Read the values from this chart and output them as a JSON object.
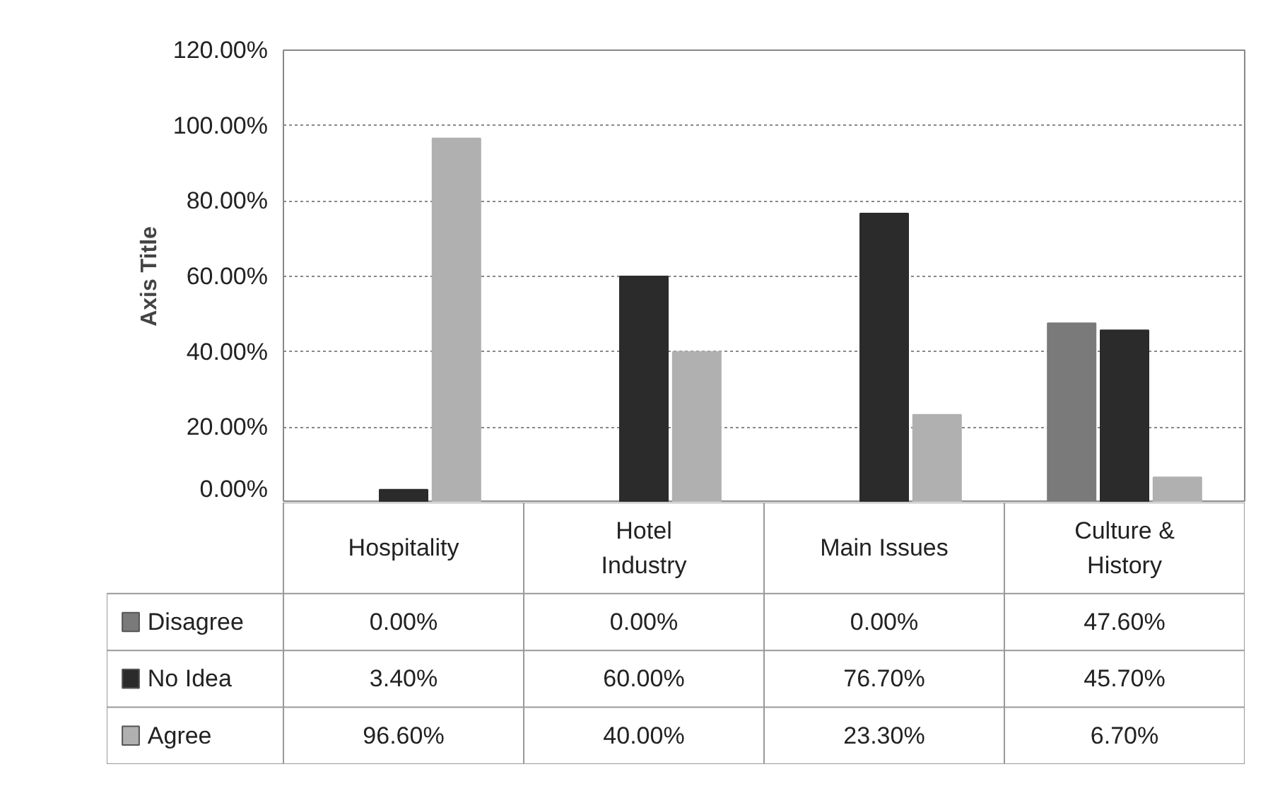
{
  "chart_data": {
    "type": "bar",
    "ylabel": "Axis Title",
    "categories": [
      "Hospitality",
      "Hotel Industry",
      "Main Issues",
      "Culture & History"
    ],
    "series": [
      {
        "name": "Disagree",
        "color": "#7a7a7a",
        "values": [
          0,
          0,
          0,
          47.6
        ],
        "value_labels": [
          "0.00%",
          "0.00%",
          "0.00%",
          "47.60%"
        ]
      },
      {
        "name": "No Idea",
        "color": "#2b2b2b",
        "values": [
          3.4,
          60,
          76.7,
          45.7
        ],
        "value_labels": [
          "3.40%",
          "60.00%",
          "76.70%",
          "45.70%"
        ]
      },
      {
        "name": "Agree",
        "color": "#b0b0b0",
        "values": [
          96.6,
          40,
          23.3,
          6.7
        ],
        "value_labels": [
          "96.60%",
          "40.00%",
          "23.30%",
          "6.70%"
        ]
      }
    ],
    "ylim": [
      0,
      120
    ],
    "yticks": [
      {
        "value": 0,
        "label": "0.00%"
      },
      {
        "value": 20,
        "label": "20.00%"
      },
      {
        "value": 40,
        "label": "40.00%"
      },
      {
        "value": 60,
        "label": "60.00%"
      },
      {
        "value": 80,
        "label": "80.00%"
      },
      {
        "value": 100,
        "label": "100.00%"
      },
      {
        "value": 120,
        "label": "120.00%"
      }
    ],
    "grid": "y",
    "legend": "bottom"
  }
}
